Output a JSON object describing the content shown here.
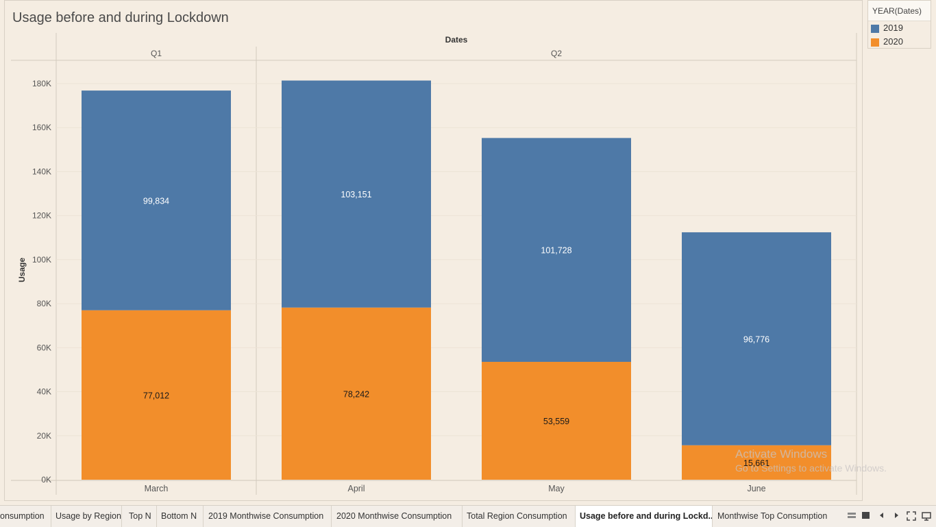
{
  "title": "Usage before and during Lockdown",
  "legend": {
    "title": "YEAR(Dates)",
    "items": [
      {
        "label": "2019",
        "color": "#4e79a7"
      },
      {
        "label": "2020",
        "color": "#f28e2b"
      }
    ]
  },
  "chart_data": {
    "type": "bar",
    "stacked": true,
    "title": "Usage before and during Lockdown",
    "xlabel": "Dates",
    "ylabel": "Usage",
    "column_groups": [
      {
        "label": "Q1",
        "categories": [
          "March"
        ]
      },
      {
        "label": "Q2",
        "categories": [
          "April",
          "May",
          "June"
        ]
      }
    ],
    "categories": [
      "March",
      "April",
      "May",
      "June"
    ],
    "series": [
      {
        "name": "2020",
        "color": "#f28e2b",
        "values": [
          77012,
          78242,
          53559,
          15661
        ],
        "labels": [
          "77,012",
          "78,242",
          "53,559",
          "15,661"
        ]
      },
      {
        "name": "2019",
        "color": "#4e79a7",
        "values": [
          99834,
          103151,
          101728,
          96776
        ],
        "labels": [
          "99,834",
          "103,151",
          "101,728",
          "96,776"
        ]
      }
    ],
    "ylim": [
      0,
      185000
    ],
    "yticks": [
      0,
      20000,
      40000,
      60000,
      80000,
      100000,
      120000,
      140000,
      160000,
      180000
    ],
    "ytick_labels": [
      "0K",
      "20K",
      "40K",
      "60K",
      "80K",
      "100K",
      "120K",
      "140K",
      "160K",
      "180K"
    ],
    "grid": true,
    "legend_position": "top-right"
  },
  "watermark": {
    "line1": "Activate Windows",
    "line2": "Go to Settings to activate Windows."
  },
  "tabs": [
    {
      "label": "onsumption",
      "active": false
    },
    {
      "label": "Usage by Region",
      "active": false
    },
    {
      "label": "Top N",
      "active": false
    },
    {
      "label": "Bottom N",
      "active": false
    },
    {
      "label": "2019 Monthwise Consumption",
      "active": false
    },
    {
      "label": "2020 Monthwise Consumption",
      "active": false
    },
    {
      "label": "Total Region Consumption",
      "active": false
    },
    {
      "label": "Usage before and during Lockd...",
      "active": true
    },
    {
      "label": "Monthwise Top Consumption",
      "active": false
    }
  ],
  "nav_icons": [
    "sheet-sorter-icon",
    "filmstrip-icon",
    "prev-sheet-icon",
    "next-sheet-icon",
    "fit-icon",
    "presentation-icon"
  ]
}
